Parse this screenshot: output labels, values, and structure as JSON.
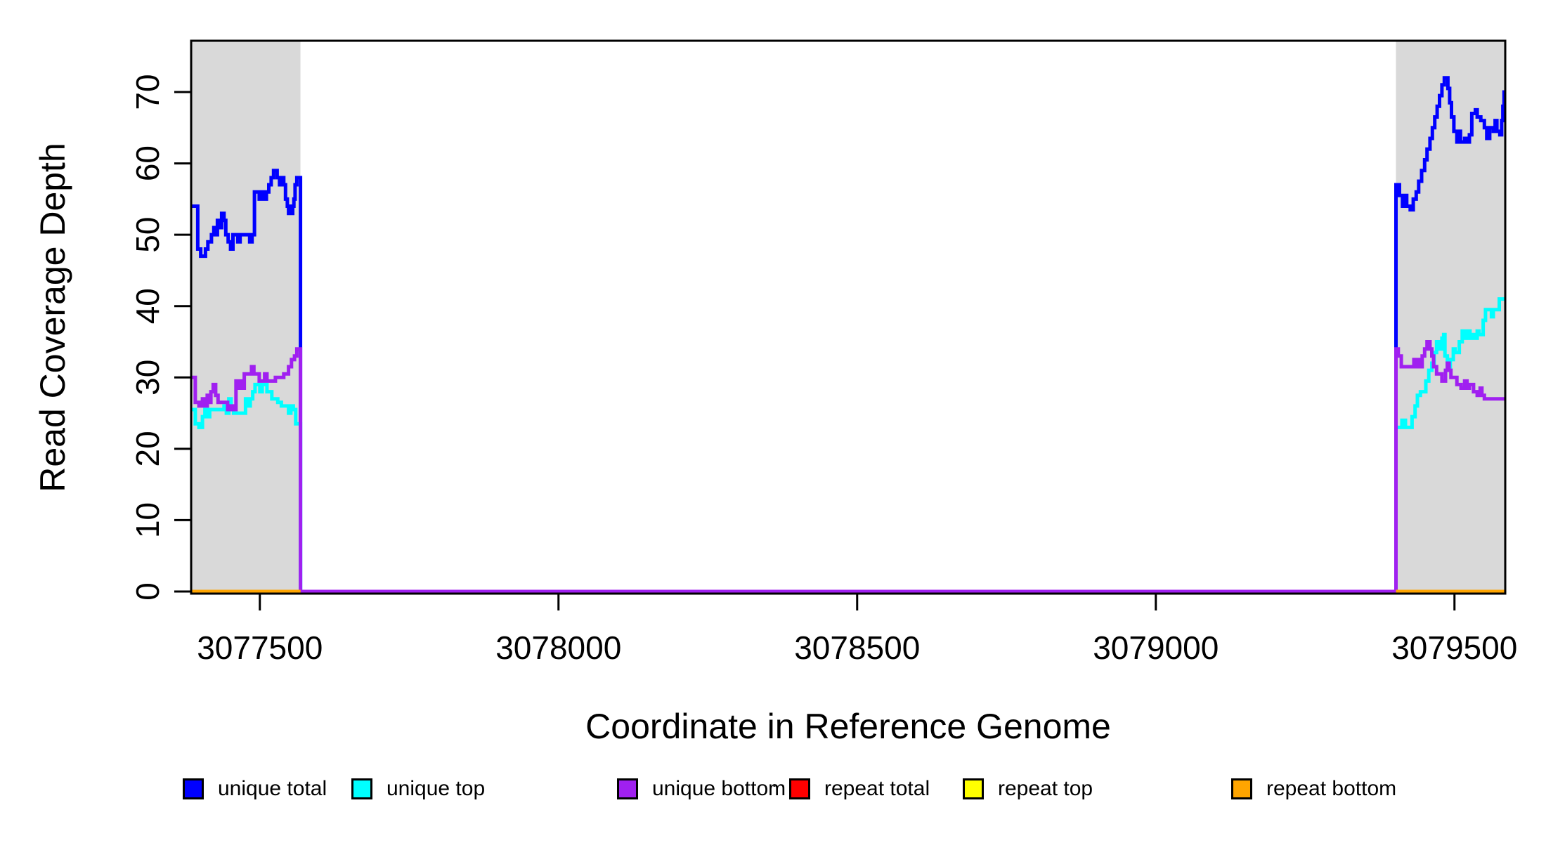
{
  "figure": {
    "background": "#FFFFFF"
  },
  "chart_data": {
    "type": "line",
    "subtype": "step",
    "title": "",
    "xlabel": "Coordinate in Reference Genome",
    "ylabel": "Read Coverage Depth",
    "grid": false,
    "xlim": [
      3077385,
      3079585
    ],
    "ylim": [
      0,
      77
    ],
    "x_ticks": [
      3077500,
      3078000,
      3078500,
      3079000,
      3079500
    ],
    "x_tick_labels": [
      "3077500",
      "3078000",
      "3078500",
      "3079000",
      "3079500"
    ],
    "y_ticks": [
      0,
      10,
      20,
      30,
      40,
      50,
      60,
      70
    ],
    "y_tick_labels": [
      "0",
      "10",
      "20",
      "30",
      "40",
      "50",
      "60",
      "70"
    ],
    "shade_color": "#D9D9D9",
    "shaded_regions": [
      {
        "x0": 3077385,
        "x1": 3077568
      },
      {
        "x0": 3079402,
        "x1": 3079585
      }
    ],
    "legend": {
      "position": "bottom",
      "items": [
        {
          "label": "unique total",
          "color": "#0000FF"
        },
        {
          "label": "unique top",
          "color": "#00FFFF"
        },
        {
          "label": "unique bottom",
          "color": "#A020F0"
        },
        {
          "label": "repeat total",
          "color": "#FF0000"
        },
        {
          "label": "repeat top",
          "color": "#FFFF00"
        },
        {
          "label": "repeat bottom",
          "color": "#FFA500"
        }
      ]
    },
    "series": [
      {
        "name": "unique total",
        "color": "#0000FF",
        "segments": [
          [
            [
              3077385,
              54
            ],
            [
              3077396,
              48
            ],
            [
              3077401,
              47
            ],
            [
              3077409,
              48
            ],
            [
              3077413,
              49
            ],
            [
              3077419,
              50
            ],
            [
              3077423,
              51
            ],
            [
              3077426,
              50
            ],
            [
              3077429,
              52
            ],
            [
              3077433,
              51
            ],
            [
              3077436,
              53
            ],
            [
              3077440,
              52
            ],
            [
              3077443,
              50
            ],
            [
              3077447,
              49
            ],
            [
              3077451,
              48
            ],
            [
              3077455,
              50
            ],
            [
              3077463,
              49
            ],
            [
              3077467,
              50
            ],
            [
              3077483,
              49
            ],
            [
              3077487,
              50
            ],
            [
              3077491,
              56
            ],
            [
              3077499,
              55
            ],
            [
              3077503,
              56
            ],
            [
              3077507,
              55
            ],
            [
              3077511,
              56
            ],
            [
              3077515,
              57
            ],
            [
              3077519,
              58
            ],
            [
              3077523,
              59
            ],
            [
              3077529,
              58
            ],
            [
              3077533,
              57
            ],
            [
              3077537,
              58
            ],
            [
              3077540,
              57
            ],
            [
              3077543,
              55
            ],
            [
              3077546,
              54
            ],
            [
              3077548,
              53
            ],
            [
              3077550,
              54
            ],
            [
              3077552,
              53
            ],
            [
              3077555,
              54
            ],
            [
              3077557,
              55
            ],
            [
              3077559,
              57
            ],
            [
              3077562,
              58
            ],
            [
              3077568,
              0
            ],
            [
              3079402,
              57
            ],
            [
              3079408,
              55.5
            ],
            [
              3079413,
              54
            ],
            [
              3079417,
              55.5
            ],
            [
              3079420,
              54
            ],
            [
              3079426,
              53.5
            ],
            [
              3079431,
              55
            ],
            [
              3079436,
              56
            ],
            [
              3079440,
              57.5
            ],
            [
              3079445,
              59
            ],
            [
              3079450,
              60.5
            ],
            [
              3079454,
              62
            ],
            [
              3079459,
              63.5
            ],
            [
              3079463,
              65
            ],
            [
              3079467,
              66.5
            ],
            [
              3079471,
              68
            ],
            [
              3079475,
              69.5
            ],
            [
              3079479,
              71
            ],
            [
              3079483,
              72
            ],
            [
              3079489,
              70.5
            ],
            [
              3079492,
              68.5
            ],
            [
              3079495,
              66.5
            ],
            [
              3079499,
              64.5
            ],
            [
              3079504,
              63
            ],
            [
              3079507,
              64.5
            ],
            [
              3079510,
              63
            ],
            [
              3079517,
              63.5
            ],
            [
              3079520,
              63
            ],
            [
              3079525,
              64
            ],
            [
              3079529,
              67
            ],
            [
              3079535,
              67.5
            ],
            [
              3079538,
              66.5
            ],
            [
              3079544,
              66
            ],
            [
              3079550,
              65
            ],
            [
              3079554,
              63.5
            ],
            [
              3079559,
              65
            ],
            [
              3079565,
              64.5
            ],
            [
              3079568,
              66
            ],
            [
              3079571,
              64.5
            ],
            [
              3079576,
              64
            ],
            [
              3079579,
              66
            ],
            [
              3079581,
              68
            ],
            [
              3079583,
              70
            ],
            [
              3079585,
              70
            ]
          ]
        ]
      },
      {
        "name": "unique top",
        "color": "#00FFFF",
        "segments": [
          [
            [
              3077385,
              25.5
            ],
            [
              3077392,
              23.5
            ],
            [
              3077398,
              23
            ],
            [
              3077404,
              24.5
            ],
            [
              3077408,
              25.5
            ],
            [
              3077412,
              24.5
            ],
            [
              3077416,
              25.5
            ],
            [
              3077440,
              26
            ],
            [
              3077444,
              25
            ],
            [
              3077448,
              27
            ],
            [
              3077452,
              25.5
            ],
            [
              3077456,
              25
            ],
            [
              3077476,
              27
            ],
            [
              3077480,
              26
            ],
            [
              3077484,
              27
            ],
            [
              3077488,
              28
            ],
            [
              3077492,
              29
            ],
            [
              3077500,
              28
            ],
            [
              3077504,
              29
            ],
            [
              3077512,
              28
            ],
            [
              3077520,
              27
            ],
            [
              3077530,
              26.5
            ],
            [
              3077536,
              26
            ],
            [
              3077548,
              25
            ],
            [
              3077552,
              26
            ],
            [
              3077556,
              25.5
            ],
            [
              3077560,
              23.5
            ],
            [
              3077568,
              0
            ],
            [
              3079402,
              23
            ],
            [
              3079412,
              24
            ],
            [
              3079418,
              23
            ],
            [
              3079429,
              24.5
            ],
            [
              3079434,
              26
            ],
            [
              3079438,
              27.5
            ],
            [
              3079443,
              28
            ],
            [
              3079452,
              29.5
            ],
            [
              3079457,
              31
            ],
            [
              3079462,
              32
            ],
            [
              3079466,
              33.5
            ],
            [
              3079470,
              35
            ],
            [
              3079475,
              34
            ],
            [
              3079479,
              35.5
            ],
            [
              3079482,
              36
            ],
            [
              3079484,
              33
            ],
            [
              3079488,
              31.5
            ],
            [
              3079493,
              32.5
            ],
            [
              3079498,
              34
            ],
            [
              3079501,
              33.5
            ],
            [
              3079508,
              35
            ],
            [
              3079513,
              36.5
            ],
            [
              3079518,
              35.5
            ],
            [
              3079522,
              36.5
            ],
            [
              3079526,
              35.5
            ],
            [
              3079529,
              36
            ],
            [
              3079534,
              35.5
            ],
            [
              3079538,
              36.5
            ],
            [
              3079541,
              36
            ],
            [
              3079548,
              38
            ],
            [
              3079552,
              39.5
            ],
            [
              3079562,
              38.5
            ],
            [
              3079565,
              39.5
            ],
            [
              3079575,
              41
            ],
            [
              3079585,
              41
            ]
          ]
        ]
      },
      {
        "name": "unique bottom",
        "color": "#A020F0",
        "segments": [
          [
            [
              3077385,
              30
            ],
            [
              3077392,
              26.5
            ],
            [
              3077398,
              26
            ],
            [
              3077404,
              27
            ],
            [
              3077407,
              26
            ],
            [
              3077412,
              27.5
            ],
            [
              3077415,
              26.5
            ],
            [
              3077418,
              28
            ],
            [
              3077422,
              29
            ],
            [
              3077426,
              27.5
            ],
            [
              3077430,
              26.5
            ],
            [
              3077446,
              25.5
            ],
            [
              3077452,
              26
            ],
            [
              3077456,
              25.5
            ],
            [
              3077460,
              29.5
            ],
            [
              3077464,
              28.5
            ],
            [
              3077467,
              29.5
            ],
            [
              3077470,
              28.5
            ],
            [
              3077474,
              30.5
            ],
            [
              3077486,
              31.5
            ],
            [
              3077490,
              30.5
            ],
            [
              3077499,
              29.5
            ],
            [
              3077508,
              30.5
            ],
            [
              3077512,
              29.5
            ],
            [
              3077526,
              30
            ],
            [
              3077540,
              30.5
            ],
            [
              3077548,
              31.5
            ],
            [
              3077553,
              32.5
            ],
            [
              3077558,
              33
            ],
            [
              3077562,
              34
            ],
            [
              3077568,
              0
            ],
            [
              3079402,
              34
            ],
            [
              3079406,
              33
            ],
            [
              3079411,
              31.5
            ],
            [
              3079432,
              32.5
            ],
            [
              3079436,
              31.5
            ],
            [
              3079439,
              32.5
            ],
            [
              3079443,
              31.5
            ],
            [
              3079446,
              33
            ],
            [
              3079450,
              34
            ],
            [
              3079454,
              35
            ],
            [
              3079459,
              34
            ],
            [
              3079462,
              33
            ],
            [
              3079465,
              31.5
            ],
            [
              3079470,
              30.5
            ],
            [
              3079479,
              29.5
            ],
            [
              3079485,
              31
            ],
            [
              3079488,
              32
            ],
            [
              3079491,
              31
            ],
            [
              3079494,
              30
            ],
            [
              3079504,
              29
            ],
            [
              3079511,
              28.5
            ],
            [
              3079517,
              29.5
            ],
            [
              3079521,
              28.5
            ],
            [
              3079525,
              29
            ],
            [
              3079532,
              28
            ],
            [
              3079538,
              27.5
            ],
            [
              3079543,
              28.5
            ],
            [
              3079546,
              27.5
            ],
            [
              3079550,
              27
            ],
            [
              3079585,
              27
            ]
          ]
        ]
      },
      {
        "name": "repeat total",
        "color": "#FF0000",
        "segments": [
          [
            [
              3077385,
              0
            ],
            [
              3077568,
              0
            ]
          ],
          [
            [
              3079402,
              0
            ],
            [
              3079585,
              0
            ]
          ]
        ]
      },
      {
        "name": "repeat top",
        "color": "#FFFF00",
        "segments": [
          [
            [
              3077385,
              0
            ],
            [
              3077568,
              0
            ]
          ],
          [
            [
              3079402,
              0
            ],
            [
              3079585,
              0
            ]
          ]
        ]
      },
      {
        "name": "repeat bottom",
        "color": "#FFA500",
        "segments": [
          [
            [
              3077385,
              0
            ],
            [
              3077568,
              0
            ]
          ],
          [
            [
              3079402,
              0
            ],
            [
              3079585,
              0
            ]
          ]
        ]
      }
    ]
  }
}
